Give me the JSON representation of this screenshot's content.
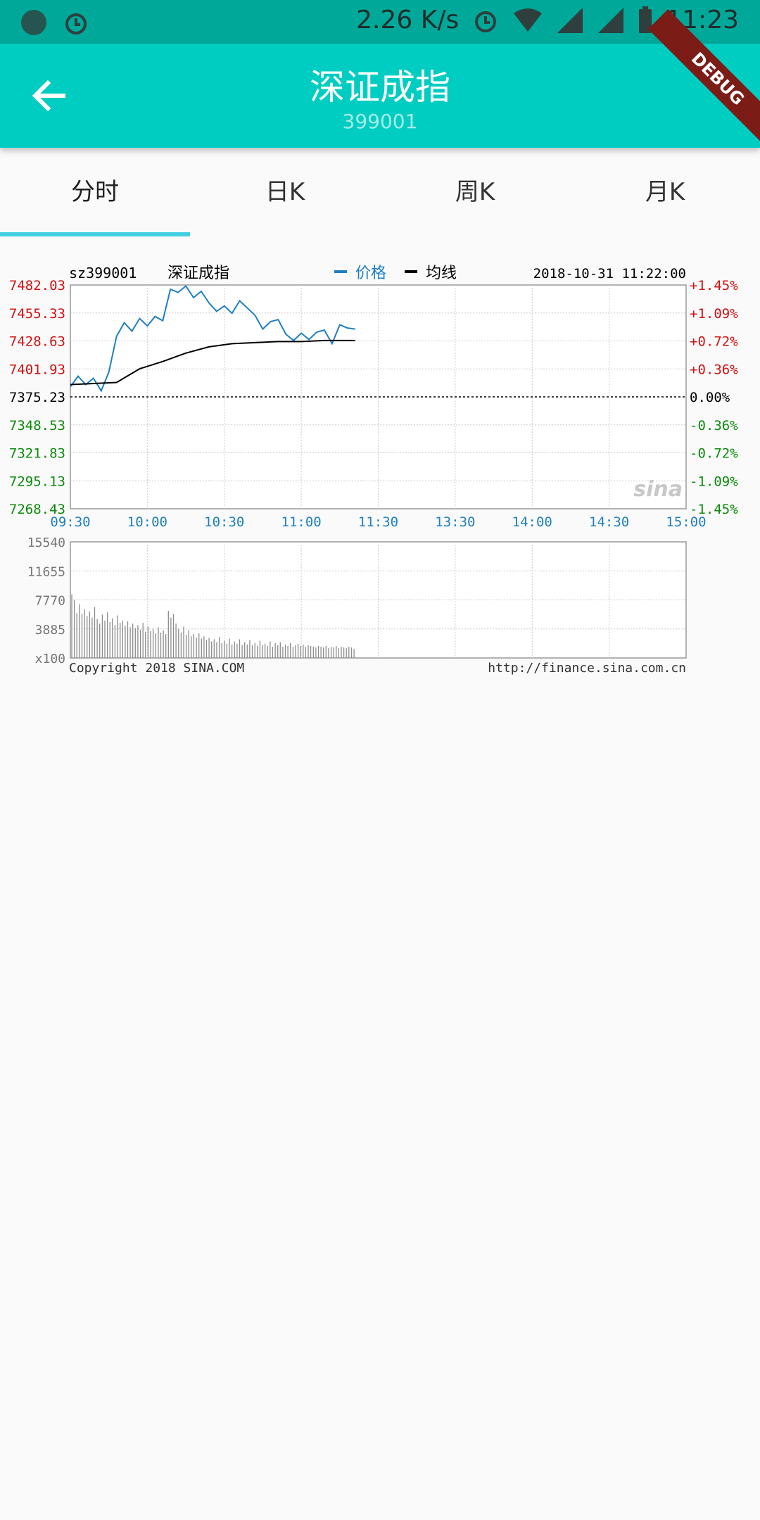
{
  "status_bar": {
    "network_speed": "2.26 K/s",
    "time": "11:23"
  },
  "app_bar": {
    "title": "深证成指",
    "code": "399001",
    "debug": "DEBUG"
  },
  "tabs": [
    {
      "label": "分时",
      "active": true
    },
    {
      "label": "日K",
      "active": false
    },
    {
      "label": "周K",
      "active": false
    },
    {
      "label": "月K",
      "active": false
    }
  ],
  "chart_data": {
    "type": "line",
    "symbol": "sz399001",
    "name": "深证成指",
    "legend": [
      "价格",
      "均线"
    ],
    "datetime": "2018-10-31 11:22:00",
    "y_left_ticks": [
      "7482.03",
      "7455.33",
      "7428.63",
      "7401.93",
      "7375.23",
      "7348.53",
      "7321.83",
      "7295.13",
      "7268.43"
    ],
    "y_right_ticks": [
      "+1.45%",
      "+1.09%",
      "+0.72%",
      "+0.36%",
      "0.00%",
      "-0.36%",
      "-0.72%",
      "-1.09%",
      "-1.45%"
    ],
    "x_ticks": [
      "09:30",
      "10:00",
      "10:30",
      "11:00",
      "11:30",
      "13:30",
      "14:00",
      "14:30",
      "15:00"
    ],
    "ylim": [
      7268.43,
      7482.03
    ],
    "series": [
      {
        "name": "价格",
        "x": [
          0,
          3,
          6,
          9,
          12,
          15,
          18,
          21,
          24,
          27,
          30,
          33,
          36,
          39,
          42,
          45,
          48,
          51,
          54,
          57,
          60,
          63,
          66,
          69,
          72,
          75,
          78,
          81,
          84,
          87,
          90,
          93,
          96,
          99,
          102,
          105,
          108,
          111
        ],
        "values": [
          7385,
          7395,
          7387,
          7393,
          7381,
          7399,
          7433,
          7446,
          7438,
          7450,
          7443,
          7452,
          7448,
          7478,
          7475,
          7481,
          7470,
          7476,
          7465,
          7457,
          7462,
          7455,
          7467,
          7460,
          7453,
          7440,
          7447,
          7449,
          7435,
          7429,
          7436,
          7430,
          7437,
          7439,
          7426,
          7444,
          7441,
          7440
        ]
      },
      {
        "name": "均线",
        "x": [
          0,
          9,
          18,
          27,
          36,
          45,
          54,
          63,
          72,
          81,
          90,
          99,
          111
        ],
        "values": [
          7387,
          7388,
          7389,
          7402,
          7409,
          7417,
          7423,
          7426,
          7427,
          7428,
          7428,
          7429,
          7429
        ]
      }
    ],
    "volume": {
      "y_ticks": [
        "15540",
        "11655",
        "7770",
        "3885",
        "x100"
      ],
      "ylim": [
        0,
        15540
      ],
      "values": [
        8500,
        7800,
        6000,
        7200,
        5900,
        6500,
        5600,
        6200,
        5400,
        6800,
        5200,
        4600,
        5800,
        5000,
        6100,
        4800,
        5300,
        4400,
        5700,
        4700,
        5000,
        4300,
        4900,
        4100,
        4600,
        4000,
        4400,
        3800,
        4700,
        3500,
        4200,
        3600,
        3900,
        3300,
        4100,
        3400,
        3700,
        3200,
        6300,
        5400,
        5900,
        4600,
        3900,
        3400,
        4200,
        3100,
        3700,
        2900,
        3200,
        2700,
        3300,
        2600,
        2900,
        2400,
        2700,
        2200,
        2500,
        2100,
        2800,
        2000,
        2300,
        1900,
        2600,
        1800,
        2200,
        1900,
        2500,
        1700,
        2100,
        1800,
        2400,
        1700,
        2000,
        1600,
        2300,
        1700,
        1900,
        1600,
        2200,
        1500,
        2000,
        1700,
        2100,
        1500,
        1800,
        1600,
        2000,
        1500,
        1700,
        1900,
        1600,
        1800,
        1500,
        1700,
        1600,
        1500,
        1400,
        1600,
        1500,
        1400,
        1600,
        1300,
        1500,
        1400,
        1600,
        1300,
        1500,
        1400,
        1300,
        1500,
        1400,
        1200
      ]
    },
    "footer_left": "Copyright 2018 SINA.COM",
    "footer_right": "http://finance.sina.com.cn",
    "watermark": "sina",
    "colors": {
      "price": "#1e7fc1",
      "average": "#000000",
      "up": "#d21010",
      "down": "#0a8a0a",
      "axis_time": "#1e7fc1"
    }
  }
}
